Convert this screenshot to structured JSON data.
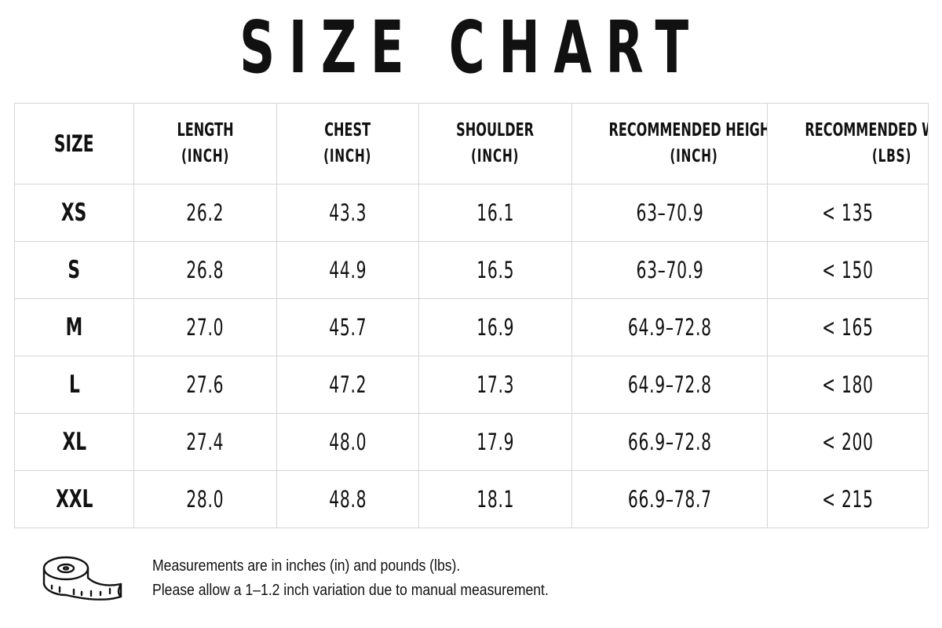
{
  "title": "SIZE CHART",
  "table": {
    "headers": [
      {
        "line1": "SIZE",
        "line2": ""
      },
      {
        "line1": "LENGTH",
        "line2": "(INCH)"
      },
      {
        "line1": "CHEST",
        "line2": "(INCH)"
      },
      {
        "line1": "SHOULDER",
        "line2": "(INCH)"
      },
      {
        "line1": "RECOMMENDED HEIGHT",
        "line2": "(INCH)"
      },
      {
        "line1": "RECOMMENDED WEIGHT",
        "line2": "(LBS)"
      }
    ],
    "rows": [
      {
        "size": "XS",
        "length": "26.2",
        "chest": "43.3",
        "shoulder": "16.1",
        "height": "63–70.9",
        "weight": "< 135"
      },
      {
        "size": "S",
        "length": "26.8",
        "chest": "44.9",
        "shoulder": "16.5",
        "height": "63–70.9",
        "weight": "< 150"
      },
      {
        "size": "M",
        "length": "27.0",
        "chest": "45.7",
        "shoulder": "16.9",
        "height": "64.9–72.8",
        "weight": "< 165"
      },
      {
        "size": "L",
        "length": "27.6",
        "chest": "47.2",
        "shoulder": "17.3",
        "height": "64.9–72.8",
        "weight": "< 180"
      },
      {
        "size": "XL",
        "length": "27.4",
        "chest": "48.0",
        "shoulder": "17.9",
        "height": "66.9–72.8",
        "weight": "< 200"
      },
      {
        "size": "XXL",
        "length": "28.0",
        "chest": "48.8",
        "shoulder": "18.1",
        "height": "66.9–78.7",
        "weight": "< 215"
      }
    ]
  },
  "footer": {
    "icon": "measuring-tape-icon",
    "note_line1": "Measurements are in inches (in) and pounds (lbs).",
    "note_line2": "Please allow a 1–1.2 inch variation due to manual measurement."
  },
  "colors": {
    "text": "#111111",
    "grid": "#d6d6d6",
    "background": "#ffffff"
  }
}
